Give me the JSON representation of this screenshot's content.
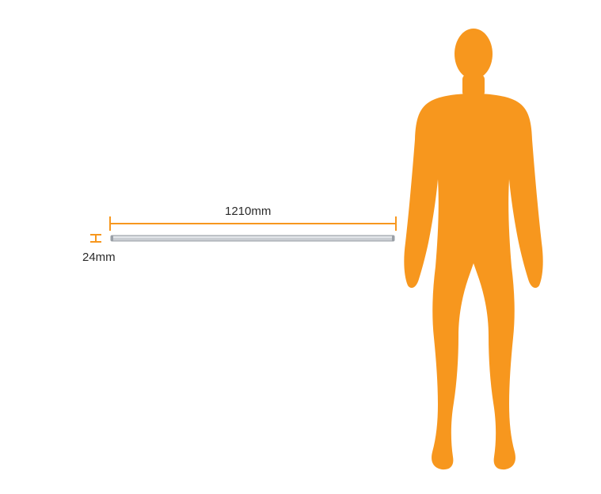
{
  "dimensions": {
    "length": "1210mm",
    "height": "24mm"
  },
  "colors": {
    "accent": "#F7971E",
    "bar_fill": "#C9CDD2",
    "bar_edge": "#9AA0A7",
    "text": "#2A2A2A"
  },
  "icons": {
    "figure": "human-silhouette-icon"
  }
}
